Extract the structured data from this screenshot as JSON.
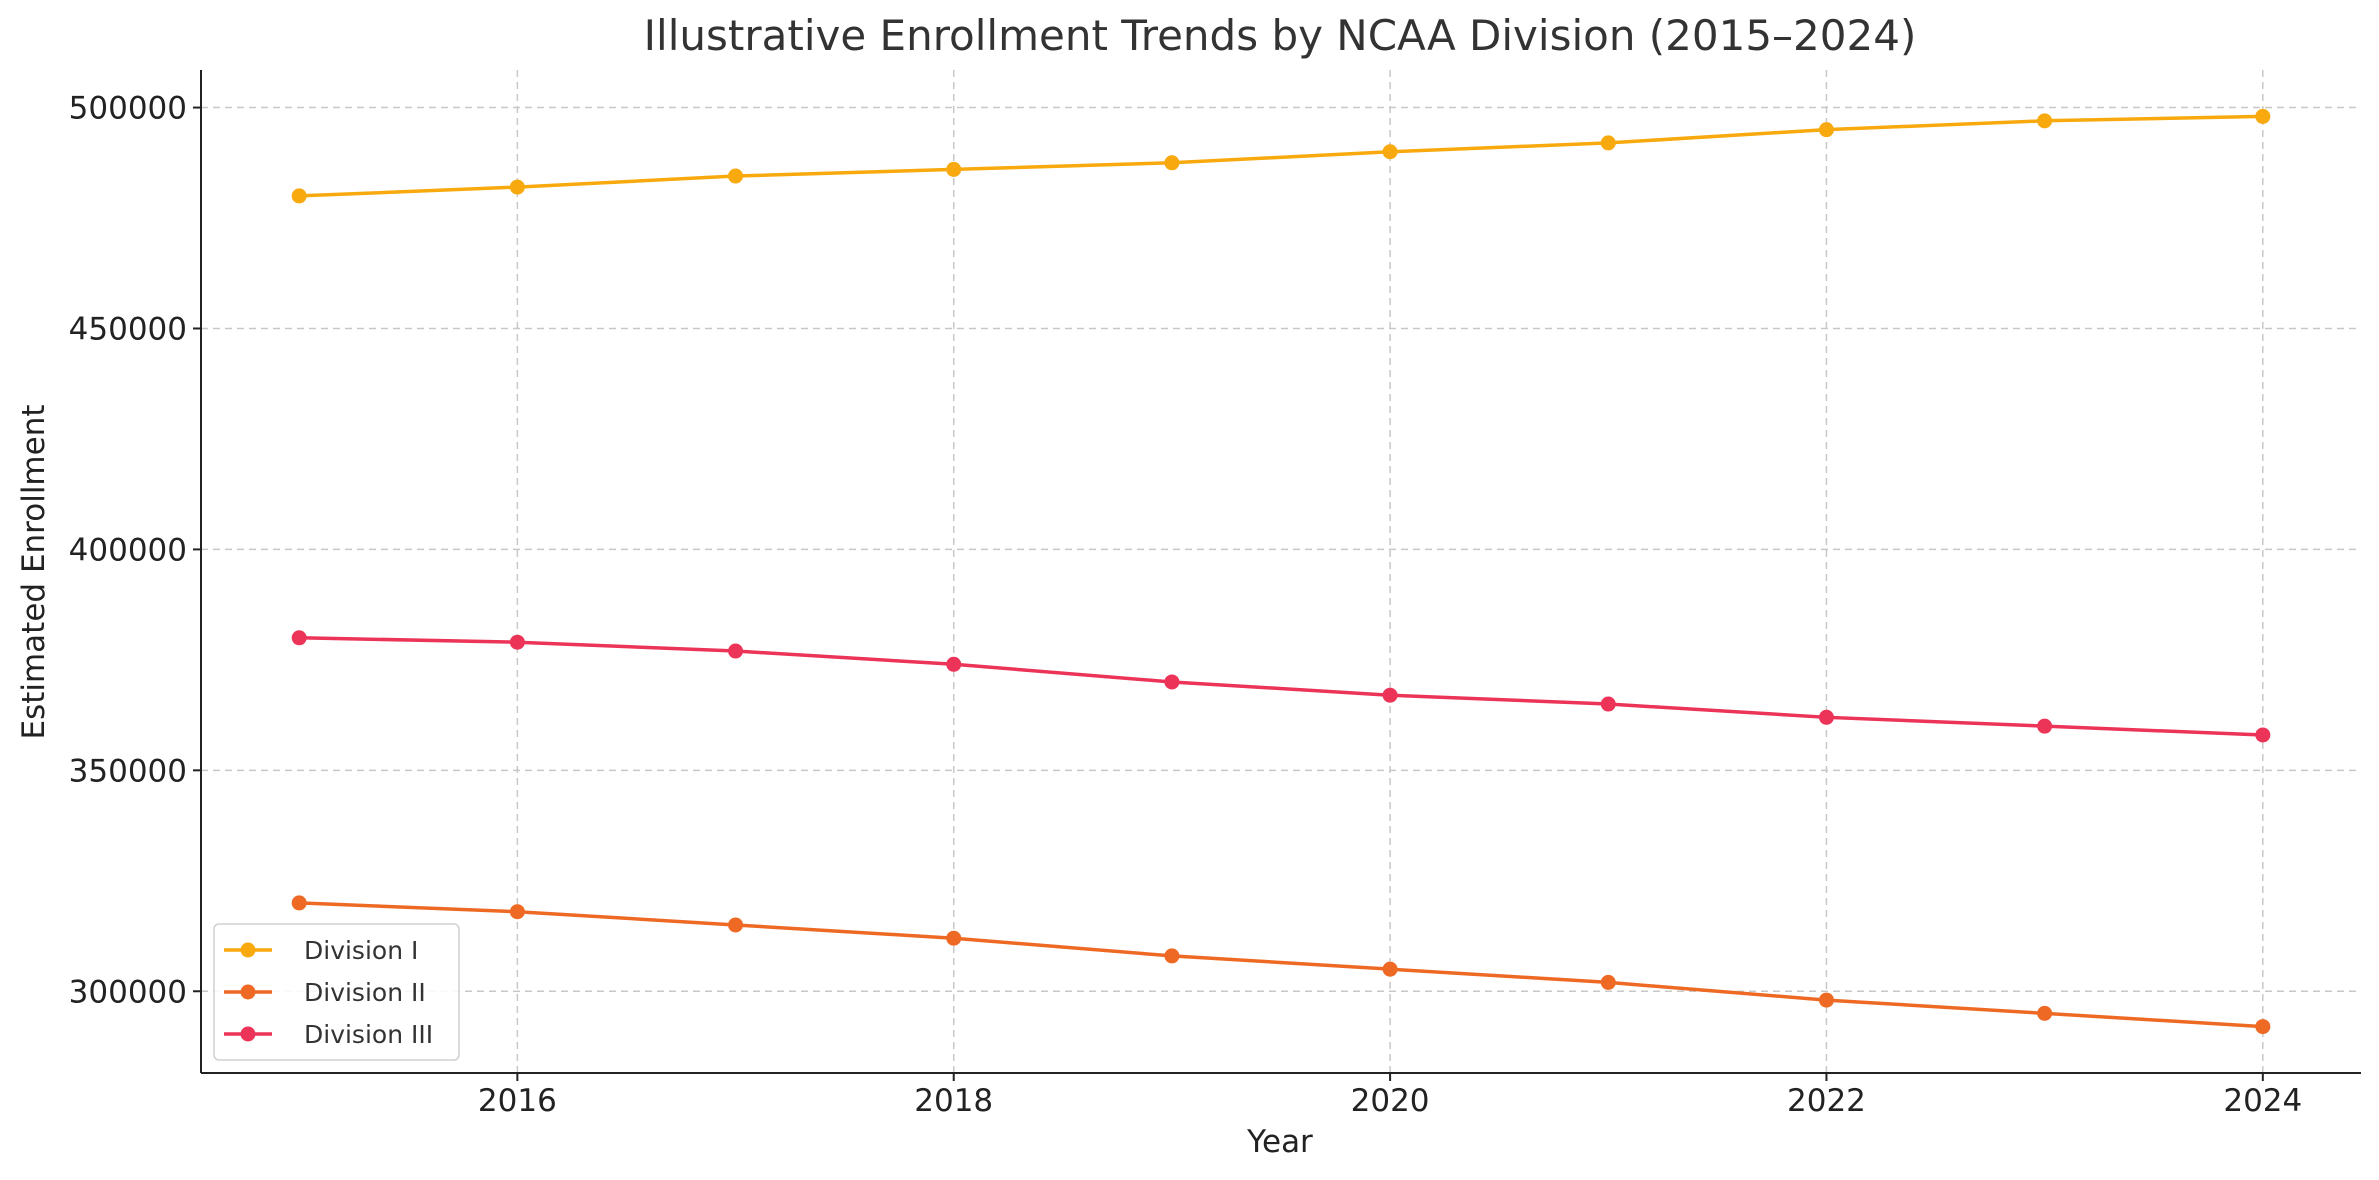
{
  "chart_data": {
    "type": "line",
    "title": "Illustrative Enrollment Trends by NCAA Division (2015–2024)",
    "xlabel": "Year",
    "ylabel": "Estimated Enrollment",
    "x": [
      2015,
      2016,
      2017,
      2018,
      2019,
      2020,
      2021,
      2022,
      2023,
      2024
    ],
    "xlim": [
      2014.55,
      2024.45
    ],
    "ylim": [
      281500,
      508500
    ],
    "x_ticks": [
      2016,
      2018,
      2020,
      2022,
      2024
    ],
    "y_ticks": [
      300000,
      350000,
      400000,
      450000,
      500000
    ],
    "grid": true,
    "legend_position": "lower-left",
    "series": [
      {
        "name": "Division I",
        "color": "#F7A90E",
        "values": [
          480000,
          482000,
          484500,
          486000,
          487500,
          490000,
          492000,
          495000,
          497000,
          498000
        ]
      },
      {
        "name": "Division II",
        "color": "#EE6A24",
        "values": [
          320000,
          318000,
          315000,
          312000,
          308000,
          305000,
          302000,
          298000,
          295000,
          292000
        ]
      },
      {
        "name": "Division III",
        "color": "#EC3458",
        "values": [
          380000,
          379000,
          377000,
          374000,
          370000,
          367000,
          365000,
          362000,
          360000,
          358000
        ]
      }
    ]
  }
}
